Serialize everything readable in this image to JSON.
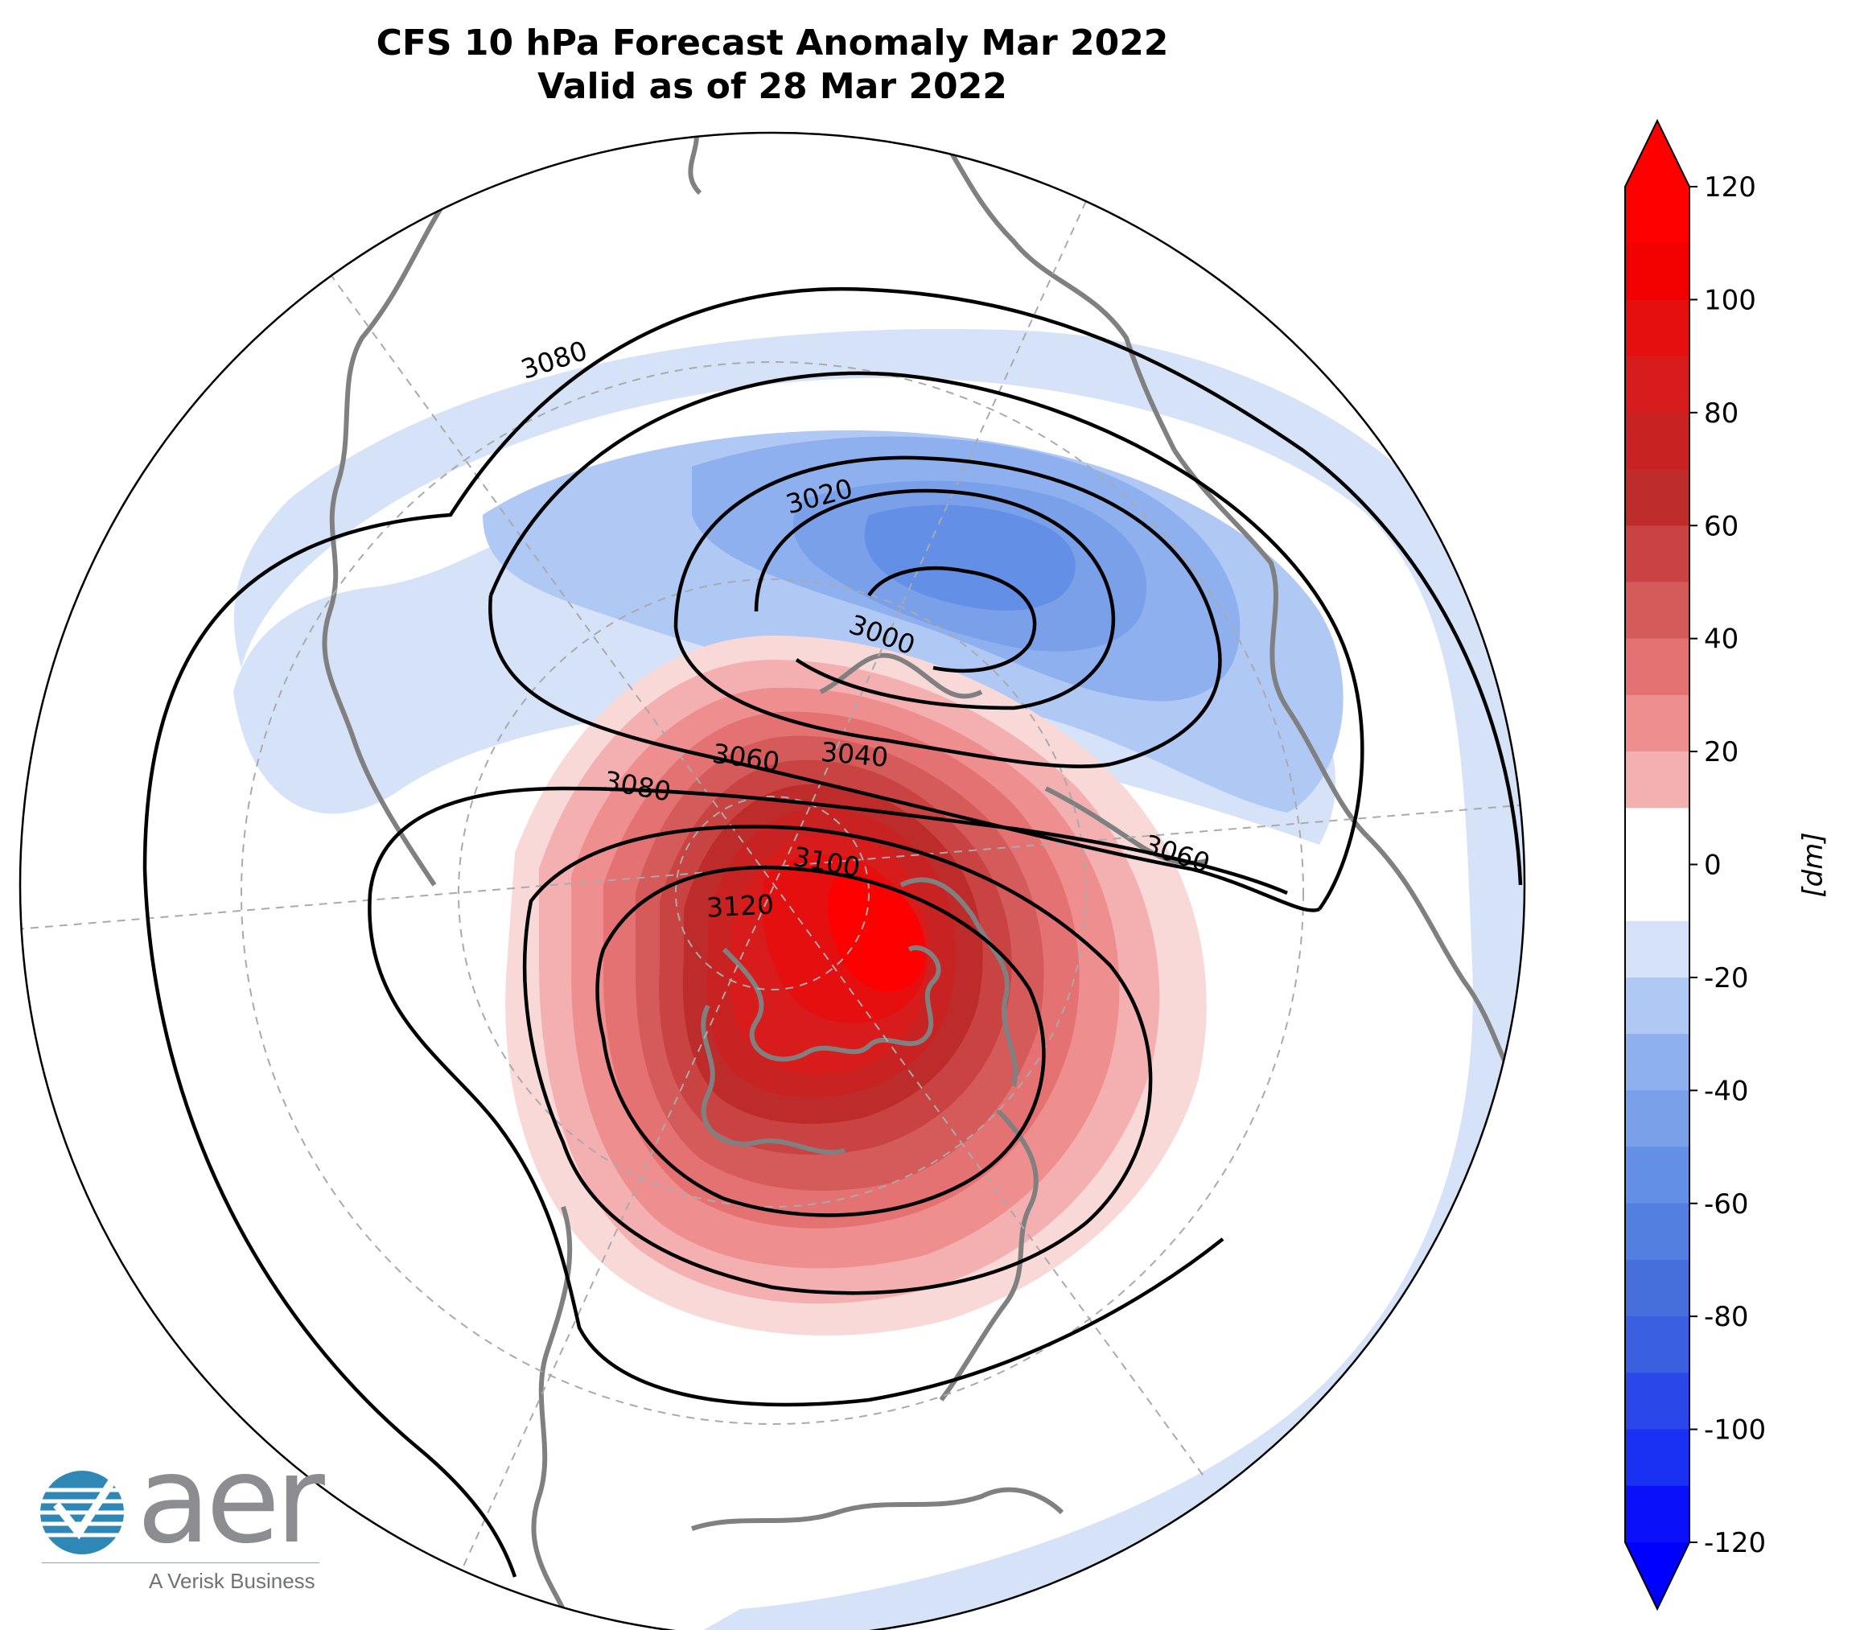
{
  "title": {
    "line1": "CFS 10 hPa Forecast Anomaly Mar 2022",
    "line2": "Valid as of 28 Mar 2022"
  },
  "map": {
    "projection": "north-polar-stereographic",
    "coastline_color": "#808080",
    "gridline_color": "#aaaaaa",
    "contour_color": "#000000",
    "contour_labels": [
      "3080",
      "3020",
      "3000",
      "3060",
      "3040",
      "3080",
      "3100",
      "3120",
      "3060"
    ],
    "anomaly_features": [
      {
        "name": "positive-anomaly",
        "peak": 120,
        "units": "dm"
      },
      {
        "name": "negative-anomaly",
        "peak": -50,
        "units": "dm"
      }
    ]
  },
  "colorbar": {
    "units": "[dm]",
    "ticks": [
      "120",
      "100",
      "80",
      "60",
      "40",
      "20",
      "0",
      "-20",
      "-40",
      "-60",
      "-80",
      "-100",
      "-120"
    ],
    "levels": [
      120,
      110,
      100,
      90,
      80,
      70,
      60,
      50,
      40,
      30,
      20,
      10,
      -10,
      -20,
      -30,
      -40,
      -50,
      -60,
      -70,
      -80,
      -90,
      -100,
      -110,
      -120
    ],
    "colors_high_to_low": [
      "#ff0000",
      "#f20000",
      "#e50f0f",
      "#d81b1b",
      "#c92222",
      "#be2b2b",
      "#c94343",
      "#d55a5a",
      "#e47272",
      "#ee8e8e",
      "#f4b0b0",
      "#f9d8d8",
      "#ffffff",
      "#d6e2f8",
      "#b0c8f4",
      "#8fb0ee",
      "#7aa0ea",
      "#638fe6",
      "#537fe0",
      "#466fdc",
      "#3a5fe0",
      "#2a48ea",
      "#1a30f2",
      "#0a10fa",
      "#0000ff"
    ],
    "max_color": "#ff0000",
    "min_color": "#0000ff"
  },
  "logo": {
    "name": "aer",
    "tagline": "A Verisk Business",
    "colors": [
      "#2f87b5",
      "#8b8d90"
    ]
  }
}
